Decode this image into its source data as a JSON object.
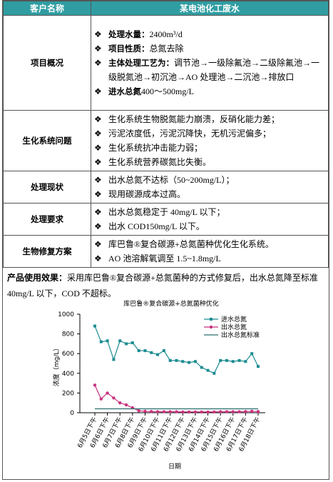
{
  "header": {
    "col1": "客户名称",
    "col2": "某电池化工废水"
  },
  "rows": [
    {
      "label": "项目概况",
      "items": [
        {
          "bold": "处理水量：",
          "text": "2400m³/d"
        },
        {
          "bold": "项目性质：",
          "text": "总氮去除"
        },
        {
          "bold": "主体处理工艺为：",
          "text": "调节池→一级除氟池→二级除氟池→一级脱氮池→初沉池→AO 处理池→二沉池→排放口"
        },
        {
          "bold": "进水总氮",
          "text": "400～500mg/L"
        }
      ]
    },
    {
      "label": "生化系统问题",
      "items": [
        {
          "text": "生化系统生物脱氮能力崩溃，反硝化能力差；"
        },
        {
          "text": "污泥浓度低，污泥沉降快，无机污泥偏多；"
        },
        {
          "text": "生化系统抗冲击能力弱；"
        },
        {
          "text": "生化系统营养碳氮比失衡。"
        }
      ]
    },
    {
      "label": "处理现状",
      "items": [
        {
          "text": "出水总氮不达标（50~200mg/L）；"
        },
        {
          "text": "现用碳源成本过高。"
        }
      ]
    },
    {
      "label": "处理要求",
      "items": [
        {
          "text": "出水总氮稳定于 40mg/L 以下；"
        },
        {
          "text": "出水 COD150mg/L 以下。"
        }
      ]
    },
    {
      "label": "生物修复方案",
      "items": [
        {
          "text": "库巴鲁®复合碳源+总氮菌种优化生化系统。"
        },
        {
          "text": "AO 池溶解氧调至 1.5~1.8mg/L"
        }
      ]
    }
  ],
  "effect": {
    "bold": "产品使用效果：",
    "text": "采用库巴鲁®复合碳源+总氮菌种的方式修复后，出水总氮降至标准 40mg/L 以下，COD 不超标。"
  },
  "chart_data": {
    "type": "line",
    "title": "库巴鲁®复合碳源+总氮菌种优化",
    "x_label": "日期",
    "y_label": "浓度（mg/L）",
    "categories": [
      "6月5日下午",
      null,
      "6月6日下午",
      null,
      "6月7日下午",
      null,
      "6月8日下午",
      null,
      "6月9日下午",
      null,
      "6月10日下午",
      null,
      "6月11日下午",
      null,
      "6月12日下午",
      null,
      "6月13日下午",
      null,
      "6月14日下午",
      null,
      "6月15日下午",
      null,
      "6月16日下午",
      null,
      "6月17日下午",
      null,
      "6月18日下午"
    ],
    "series": [
      {
        "name": "进水总氮",
        "color": "#1b8c91",
        "marker": "square",
        "values": [
          880,
          720,
          730,
          540,
          730,
          700,
          710,
          630,
          630,
          610,
          590,
          630,
          530,
          530,
          520,
          510,
          520,
          460,
          430,
          400,
          530,
          530,
          520,
          530,
          520,
          600,
          470
        ]
      },
      {
        "name": "出水总氮",
        "color": "#c8327e",
        "marker": "circle",
        "values": [
          280,
          140,
          200,
          150,
          100,
          80,
          50,
          20,
          15,
          12,
          10,
          10,
          10,
          10,
          8,
          8,
          8,
          8,
          8,
          8,
          10,
          10,
          10,
          10,
          12,
          15,
          12
        ]
      },
      {
        "name": "出水总氮标准",
        "color": "#2b6e6e",
        "marker": "none",
        "values": [
          40,
          40,
          40,
          40,
          40,
          40,
          40,
          40,
          40,
          40,
          40,
          40,
          40,
          40,
          40,
          40,
          40,
          40,
          40,
          40,
          40,
          40,
          40,
          40,
          40,
          40,
          40
        ]
      }
    ],
    "ylim": [
      0,
      1000
    ],
    "yticks": [
      0,
      200,
      400,
      600,
      800,
      1000
    ]
  }
}
